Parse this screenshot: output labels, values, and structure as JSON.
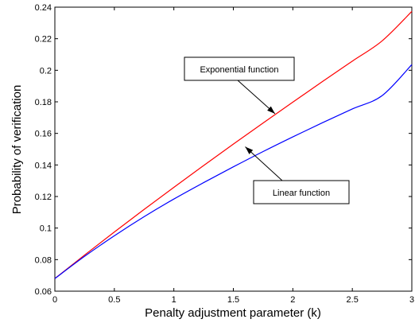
{
  "chart_data": {
    "type": "line",
    "title": "",
    "xlabel": "Penalty adjustment parameter (k)",
    "ylabel": "Probability of verification",
    "xlim": [
      0,
      3
    ],
    "ylim": [
      0.06,
      0.24
    ],
    "xticks": [
      0,
      0.5,
      1,
      1.5,
      2,
      2.5,
      3
    ],
    "xtick_labels": [
      "0",
      "0.5",
      "1",
      "1.5",
      "2",
      "2.5",
      "3"
    ],
    "yticks": [
      0.06,
      0.08,
      0.1,
      0.12,
      0.14,
      0.16,
      0.18,
      0.2,
      0.22,
      0.24
    ],
    "ytick_labels": [
      "0.06",
      "0.08",
      "0.1",
      "0.12",
      "0.14",
      "0.16",
      "0.18",
      "0.2",
      "0.22",
      "0.24"
    ],
    "grid": false,
    "legend": "none",
    "series": [
      {
        "color": "#ff0000",
        "x": [
          0,
          0.25,
          0.5,
          0.75,
          1,
          1.25,
          1.5,
          1.75,
          2,
          2.25,
          2.5,
          2.75,
          3
        ],
        "y": [
          0.068,
          0.0829,
          0.0975,
          0.1118,
          0.1258,
          0.1396,
          0.1532,
          0.1666,
          0.1798,
          0.1929,
          0.2058,
          0.2186,
          0.2373
        ]
      },
      {
        "color": "#0000ff",
        "x": [
          0,
          0.25,
          0.5,
          0.75,
          1,
          1.25,
          1.5,
          1.75,
          2,
          2.25,
          2.5,
          2.75,
          3
        ],
        "y": [
          0.068,
          0.0821,
          0.0951,
          0.1072,
          0.1184,
          0.1288,
          0.1388,
          0.1485,
          0.1578,
          0.1668,
          0.1755,
          0.1839,
          0.2036
        ]
      }
    ],
    "annotations": [
      {
        "text": "Exponential function",
        "target_x": 1.85,
        "target_y": 0.1725
      },
      {
        "text": "Linear function",
        "target_x": 1.6,
        "target_y": 0.1515
      }
    ]
  }
}
